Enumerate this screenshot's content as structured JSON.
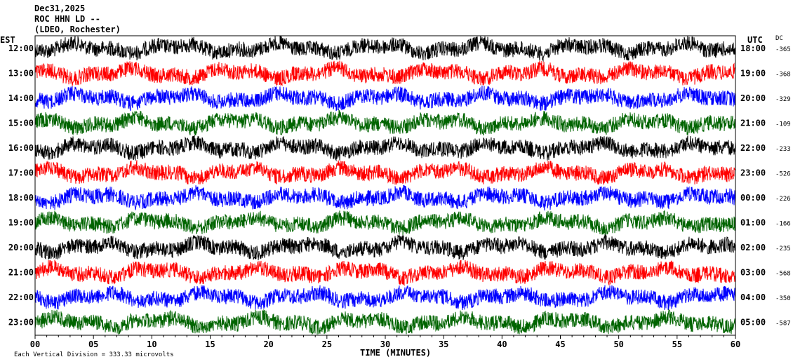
{
  "header": {
    "date": "Dec31,2025",
    "station": "ROC HHN LD --",
    "network": "(LDEO, Rochester)"
  },
  "left_axis_title": "EST",
  "right_axis_title": "UTC",
  "dc_title": "DC",
  "footer": {
    "scale_note": "Each Vertical Division =   333.33 microvolts"
  },
  "chart_data": {
    "type": "line",
    "title": "",
    "xlabel": "TIME (MINUTES)",
    "x_ticks": [
      "00",
      "05",
      "10",
      "15",
      "20",
      "25",
      "30",
      "35",
      "40",
      "45",
      "50",
      "55",
      "60"
    ],
    "xlim": [
      0,
      60
    ],
    "trace_colors": [
      "#000000",
      "#ff0000",
      "#0000ff",
      "#006400"
    ],
    "traces": [
      {
        "est": "12:00",
        "utc": "18:00",
        "dc": "-365",
        "color": "#000000"
      },
      {
        "est": "13:00",
        "utc": "19:00",
        "dc": "-368",
        "color": "#ff0000"
      },
      {
        "est": "14:00",
        "utc": "20:00",
        "dc": "-329",
        "color": "#0000ff"
      },
      {
        "est": "15:00",
        "utc": "21:00",
        "dc": "-109",
        "color": "#006400"
      },
      {
        "est": "16:00",
        "utc": "22:00",
        "dc": "-233",
        "color": "#000000"
      },
      {
        "est": "17:00",
        "utc": "23:00",
        "dc": "-526",
        "color": "#ff0000"
      },
      {
        "est": "18:00",
        "utc": "00:00",
        "dc": "-226",
        "color": "#0000ff"
      },
      {
        "est": "19:00",
        "utc": "01:00",
        "dc": "-166",
        "color": "#006400"
      },
      {
        "est": "20:00",
        "utc": "02:00",
        "dc": "-235",
        "color": "#000000"
      },
      {
        "est": "21:00",
        "utc": "03:00",
        "dc": "-568",
        "color": "#ff0000"
      },
      {
        "est": "22:00",
        "utc": "04:00",
        "dc": "-350",
        "color": "#0000ff"
      },
      {
        "est": "23:00",
        "utc": "05:00",
        "dc": "-587",
        "color": "#006400"
      }
    ]
  }
}
